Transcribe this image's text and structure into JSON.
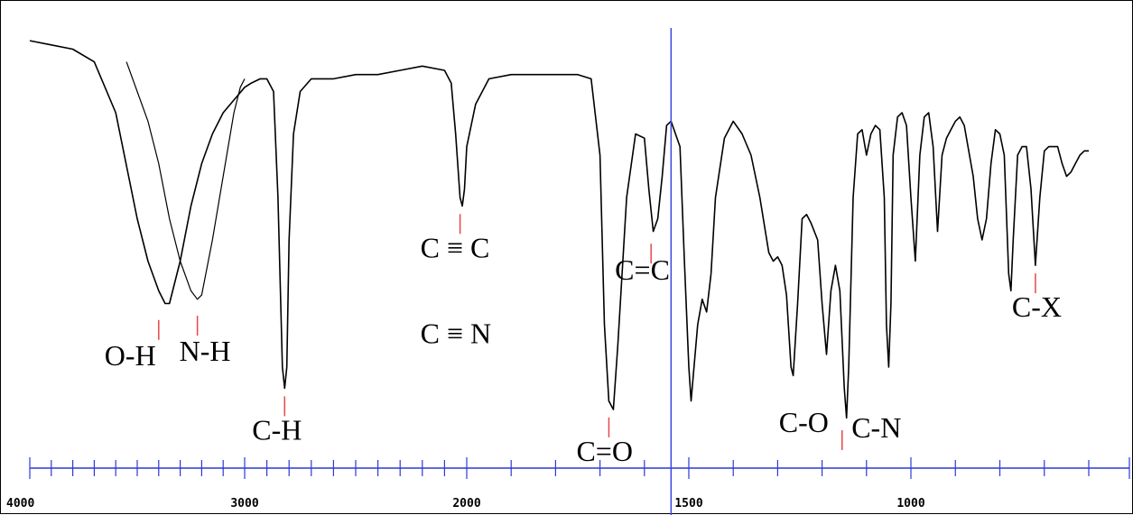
{
  "chart_data": {
    "type": "line",
    "title": "",
    "xlabel": "",
    "ylabel": "",
    "x_axis": {
      "min": 4000,
      "max": 600,
      "reversed": true
    },
    "x_ticks": [
      4000,
      3000,
      2000,
      1500,
      1000
    ],
    "x_tick_labels": [
      "4000",
      "3000",
      "2000",
      "1500",
      "1000"
    ],
    "cursor_x": 1540,
    "y_axis": {
      "unit": "transmittance_fraction",
      "min": 0,
      "max": 1
    },
    "colors": {
      "spectrum": "#000000",
      "axis": "#2a3ad8",
      "cursor": "#3a46e6",
      "marker": "#e8464a"
    },
    "series": [
      {
        "id": "main",
        "points": [
          [
            4000,
            0.97
          ],
          [
            3900,
            0.96
          ],
          [
            3800,
            0.95
          ],
          [
            3700,
            0.92
          ],
          [
            3600,
            0.8
          ],
          [
            3500,
            0.55
          ],
          [
            3450,
            0.45
          ],
          [
            3400,
            0.38
          ],
          [
            3370,
            0.35
          ],
          [
            3350,
            0.35
          ],
          [
            3300,
            0.45
          ],
          [
            3250,
            0.58
          ],
          [
            3200,
            0.68
          ],
          [
            3150,
            0.75
          ],
          [
            3100,
            0.8
          ],
          [
            3050,
            0.83
          ],
          [
            3000,
            0.86
          ],
          [
            2970,
            0.87
          ],
          [
            2930,
            0.88
          ],
          [
            2900,
            0.88
          ],
          [
            2870,
            0.85
          ],
          [
            2850,
            0.6
          ],
          [
            2830,
            0.2
          ],
          [
            2820,
            0.15
          ],
          [
            2810,
            0.2
          ],
          [
            2800,
            0.5
          ],
          [
            2780,
            0.75
          ],
          [
            2750,
            0.85
          ],
          [
            2700,
            0.88
          ],
          [
            2600,
            0.88
          ],
          [
            2500,
            0.89
          ],
          [
            2400,
            0.89
          ],
          [
            2300,
            0.9
          ],
          [
            2200,
            0.91
          ],
          [
            2100,
            0.9
          ],
          [
            2070,
            0.87
          ],
          [
            2050,
            0.75
          ],
          [
            2030,
            0.6
          ],
          [
            2020,
            0.58
          ],
          [
            2010,
            0.62
          ],
          [
            2000,
            0.72
          ],
          [
            1980,
            0.82
          ],
          [
            1950,
            0.88
          ],
          [
            1900,
            0.89
          ],
          [
            1850,
            0.89
          ],
          [
            1800,
            0.89
          ],
          [
            1750,
            0.89
          ],
          [
            1720,
            0.88
          ],
          [
            1700,
            0.7
          ],
          [
            1690,
            0.3
          ],
          [
            1680,
            0.12
          ],
          [
            1670,
            0.1
          ],
          [
            1660,
            0.25
          ],
          [
            1640,
            0.6
          ],
          [
            1620,
            0.75
          ],
          [
            1600,
            0.74
          ],
          [
            1590,
            0.62
          ],
          [
            1580,
            0.52
          ],
          [
            1570,
            0.55
          ],
          [
            1560,
            0.65
          ],
          [
            1550,
            0.77
          ],
          [
            1540,
            0.78
          ],
          [
            1520,
            0.72
          ],
          [
            1510,
            0.45
          ],
          [
            1500,
            0.2
          ],
          [
            1495,
            0.12
          ],
          [
            1480,
            0.3
          ],
          [
            1470,
            0.36
          ],
          [
            1460,
            0.33
          ],
          [
            1450,
            0.42
          ],
          [
            1440,
            0.6
          ],
          [
            1420,
            0.74
          ],
          [
            1400,
            0.78
          ],
          [
            1380,
            0.75
          ],
          [
            1360,
            0.7
          ],
          [
            1340,
            0.6
          ],
          [
            1320,
            0.47
          ],
          [
            1310,
            0.45
          ],
          [
            1300,
            0.46
          ],
          [
            1290,
            0.44
          ],
          [
            1280,
            0.37
          ],
          [
            1270,
            0.2
          ],
          [
            1265,
            0.18
          ],
          [
            1255,
            0.35
          ],
          [
            1245,
            0.55
          ],
          [
            1235,
            0.56
          ],
          [
            1225,
            0.54
          ],
          [
            1210,
            0.5
          ],
          [
            1200,
            0.35
          ],
          [
            1190,
            0.23
          ],
          [
            1180,
            0.38
          ],
          [
            1170,
            0.44
          ],
          [
            1160,
            0.38
          ],
          [
            1150,
            0.15
          ],
          [
            1145,
            0.08
          ],
          [
            1140,
            0.2
          ],
          [
            1130,
            0.6
          ],
          [
            1120,
            0.75
          ],
          [
            1110,
            0.76
          ],
          [
            1100,
            0.7
          ],
          [
            1090,
            0.75
          ],
          [
            1080,
            0.77
          ],
          [
            1070,
            0.76
          ],
          [
            1060,
            0.6
          ],
          [
            1055,
            0.3
          ],
          [
            1050,
            0.2
          ],
          [
            1045,
            0.35
          ],
          [
            1040,
            0.7
          ],
          [
            1030,
            0.79
          ],
          [
            1020,
            0.8
          ],
          [
            1010,
            0.77
          ],
          [
            1000,
            0.6
          ],
          [
            990,
            0.45
          ],
          [
            980,
            0.7
          ],
          [
            970,
            0.79
          ],
          [
            960,
            0.8
          ],
          [
            950,
            0.72
          ],
          [
            940,
            0.52
          ],
          [
            930,
            0.7
          ],
          [
            920,
            0.74
          ],
          [
            910,
            0.76
          ],
          [
            900,
            0.78
          ],
          [
            890,
            0.79
          ],
          [
            880,
            0.77
          ],
          [
            860,
            0.65
          ],
          [
            850,
            0.55
          ],
          [
            840,
            0.5
          ],
          [
            830,
            0.55
          ],
          [
            820,
            0.68
          ],
          [
            810,
            0.76
          ],
          [
            800,
            0.75
          ],
          [
            790,
            0.7
          ],
          [
            780,
            0.42
          ],
          [
            775,
            0.38
          ],
          [
            770,
            0.5
          ],
          [
            760,
            0.7
          ],
          [
            750,
            0.72
          ],
          [
            740,
            0.72
          ],
          [
            730,
            0.62
          ],
          [
            720,
            0.44
          ],
          [
            710,
            0.6
          ],
          [
            700,
            0.71
          ],
          [
            690,
            0.72
          ],
          [
            680,
            0.72
          ],
          [
            670,
            0.72
          ],
          [
            660,
            0.68
          ],
          [
            650,
            0.65
          ],
          [
            640,
            0.66
          ],
          [
            630,
            0.68
          ],
          [
            620,
            0.7
          ],
          [
            610,
            0.71
          ],
          [
            600,
            0.71
          ]
        ]
      },
      {
        "id": "overlay",
        "points": [
          [
            3550,
            0.92
          ],
          [
            3500,
            0.85
          ],
          [
            3450,
            0.78
          ],
          [
            3400,
            0.68
          ],
          [
            3350,
            0.55
          ],
          [
            3300,
            0.45
          ],
          [
            3250,
            0.38
          ],
          [
            3220,
            0.36
          ],
          [
            3200,
            0.37
          ],
          [
            3150,
            0.5
          ],
          [
            3100,
            0.65
          ],
          [
            3050,
            0.8
          ],
          [
            3020,
            0.86
          ],
          [
            3000,
            0.88
          ]
        ]
      }
    ],
    "annotations": [
      {
        "text": "O-H",
        "x": 3400,
        "y": 0.26
      },
      {
        "text": "N-H",
        "x": 3220,
        "y": 0.27
      },
      {
        "text": "C-H",
        "x": 2820,
        "y": 0.08
      },
      {
        "text": "C ≡ C",
        "x": 2030,
        "y": 0.51
      },
      {
        "text": "C ≡ N",
        "x": 2030,
        "y": 0.41
      },
      {
        "text": "C=C",
        "x": 1585,
        "y": 0.44
      },
      {
        "text": "C=O",
        "x": 1680,
        "y": 0.03
      },
      {
        "text": "C-O",
        "x": 1155,
        "y": 0.0
      },
      {
        "text": "C-N",
        "x": 1150,
        "y": 0.0
      },
      {
        "text": "C-X",
        "x": 720,
        "y": 0.37
      }
    ]
  }
}
